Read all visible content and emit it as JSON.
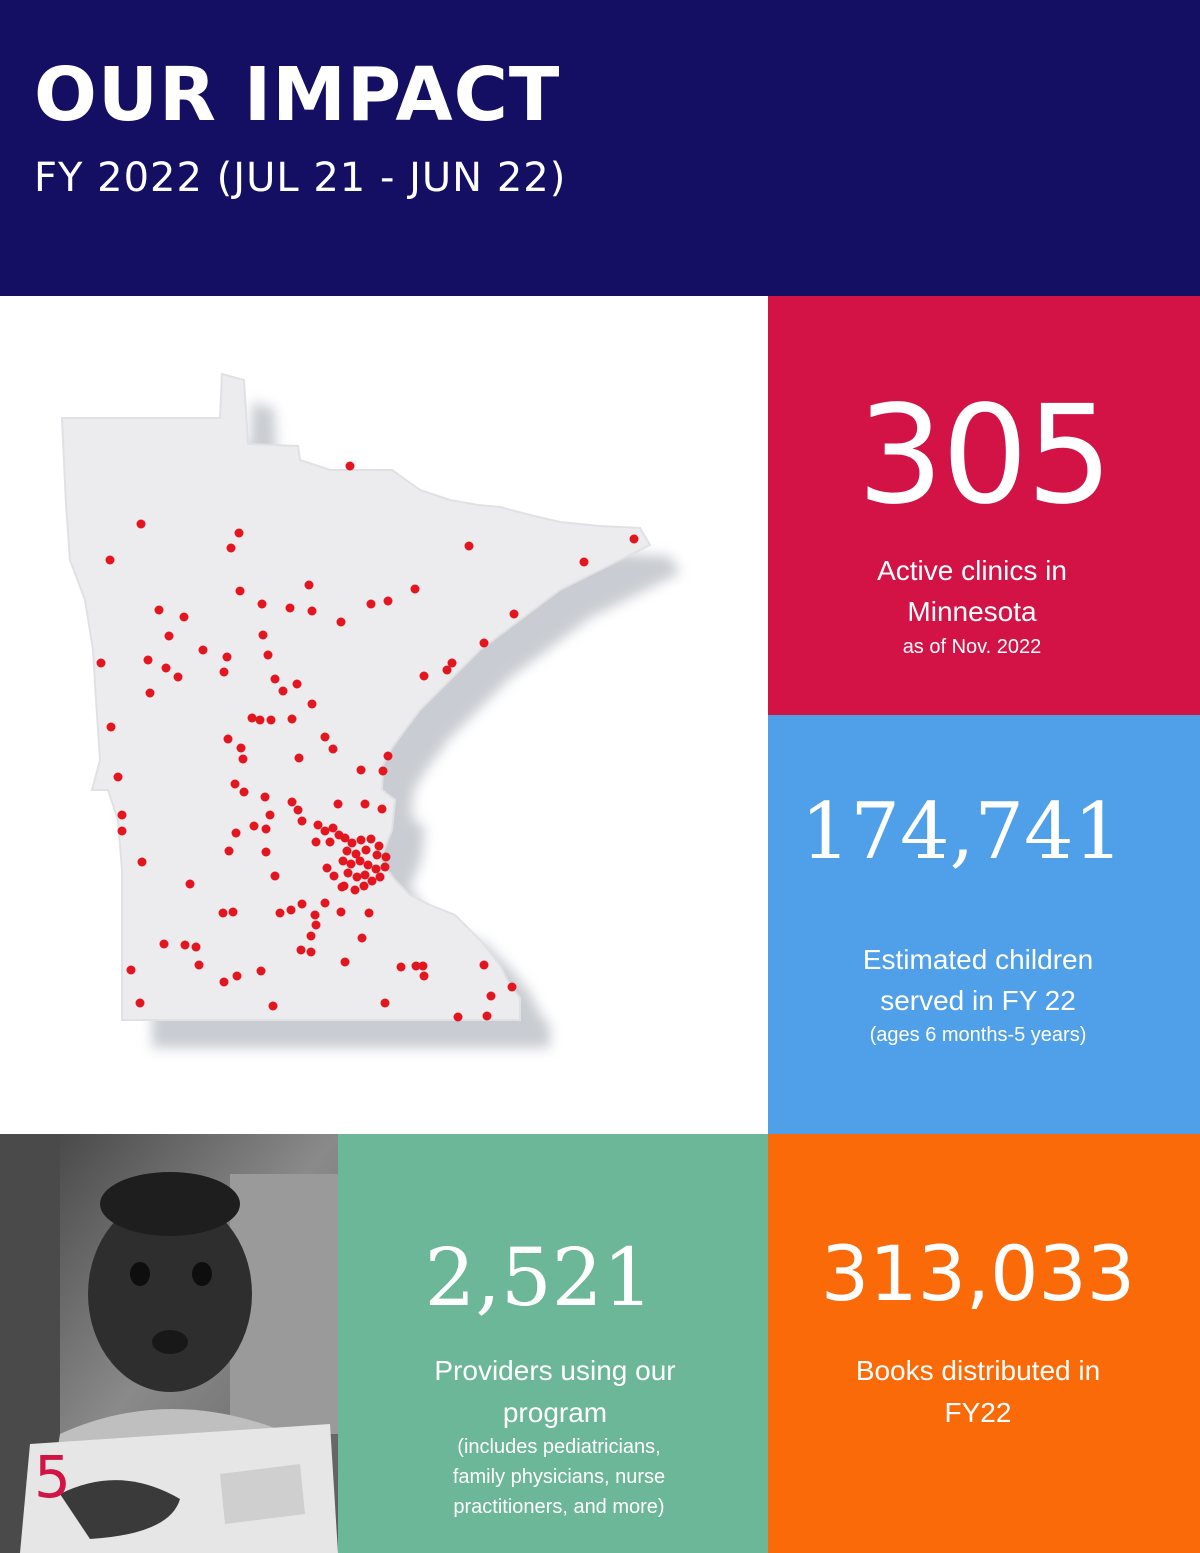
{
  "header": {
    "title": "OUR IMPACT",
    "subtitle": "FY 2022 (JUL 21 - JUN 22)",
    "background": "#140f63"
  },
  "map": {
    "icon": "minnesota-state-icon",
    "dot_color": "#e3161f"
  },
  "stats": {
    "clinics": {
      "value": "305",
      "label_line1": "Active clinics in",
      "label_line2": "Minnesota",
      "note": "as of Nov. 2022",
      "color": "#d31245"
    },
    "children": {
      "value": "174,741",
      "label_line1": "Estimated children",
      "label_line2": "served in FY 22",
      "note": "(ages 6 months-5 years)",
      "color": "#509fe9"
    },
    "providers": {
      "value": "2,521",
      "label_line1": "Providers using our",
      "label_line2": "program",
      "note_line1": "(includes pediatricians,",
      "note_line2": "family physicians, nurse",
      "note_line3": "practitioners, and more)",
      "color": "#6bb798"
    },
    "books": {
      "value": "313,033",
      "label_line1": "Books distributed in",
      "label_line2": "FY22",
      "color": "#fb6a08"
    }
  },
  "photo": {
    "icon": "child-reading-photo"
  },
  "page_number": "5"
}
